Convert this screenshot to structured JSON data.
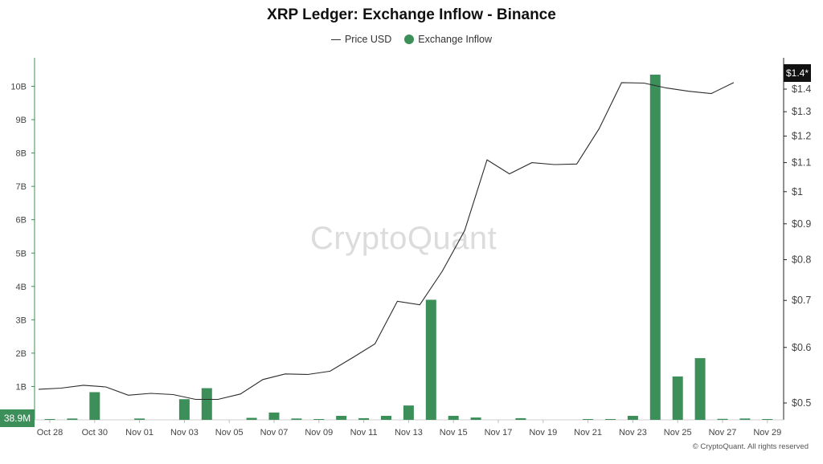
{
  "chart_data": {
    "type": "bar",
    "title": "XRP Ledger: Exchange Inflow - Binance",
    "legend": [
      {
        "label": "Price USD",
        "marker": "line",
        "color": "#333333"
      },
      {
        "label": "Exchange Inflow",
        "marker": "dot",
        "color": "#3d8f5a"
      }
    ],
    "left_axis": {
      "ticks": [
        {
          "value": 1,
          "label": "1B"
        },
        {
          "value": 2,
          "label": "2B"
        },
        {
          "value": 3,
          "label": "3B"
        },
        {
          "value": 4,
          "label": "4B"
        },
        {
          "value": 5,
          "label": "5B"
        },
        {
          "value": 6,
          "label": "6B"
        },
        {
          "value": 7,
          "label": "7B"
        },
        {
          "value": 8,
          "label": "8B"
        },
        {
          "value": 9,
          "label": "9B"
        },
        {
          "value": 10,
          "label": "10B"
        }
      ],
      "range": [
        0,
        10.35
      ],
      "current_label": "38.9M"
    },
    "right_axis": {
      "scale": "log",
      "ticks": [
        {
          "value": 0.5,
          "label": "$0.5"
        },
        {
          "value": 0.6,
          "label": "$0.6"
        },
        {
          "value": 0.7,
          "label": "$0.7"
        },
        {
          "value": 0.8,
          "label": "$0.8"
        },
        {
          "value": 0.9,
          "label": "$0.9"
        },
        {
          "value": 1.0,
          "label": "$1"
        },
        {
          "value": 1.1,
          "label": "$1.1"
        },
        {
          "value": 1.2,
          "label": "$1.2"
        },
        {
          "value": 1.3,
          "label": "$1.3"
        },
        {
          "value": 1.4,
          "label": "$1.4"
        }
      ],
      "range": [
        0.47,
        1.505
      ],
      "current_label": "$1.4*"
    },
    "x_ticks": [
      "Oct 28",
      "Oct 30",
      "Nov 01",
      "Nov 03",
      "Nov 05",
      "Nov 07",
      "Nov 09",
      "Nov 11",
      "Nov 13",
      "Nov 15",
      "Nov 17",
      "Nov 19",
      "Nov 21",
      "Nov 23",
      "Nov 25",
      "Nov 27",
      "Nov 29"
    ],
    "categories": [
      "Oct 28",
      "Oct 29",
      "Oct 30",
      "Oct 31",
      "Nov 01",
      "Nov 02",
      "Nov 03",
      "Nov 04",
      "Nov 05",
      "Nov 06",
      "Nov 07",
      "Nov 08",
      "Nov 09",
      "Nov 10",
      "Nov 11",
      "Nov 12",
      "Nov 13",
      "Nov 14",
      "Nov 15",
      "Nov 16",
      "Nov 17",
      "Nov 18",
      "Nov 19",
      "Nov 20",
      "Nov 21",
      "Nov 22",
      "Nov 23",
      "Nov 24",
      "Nov 25",
      "Nov 26",
      "Nov 27",
      "Nov 28",
      "Nov 29"
    ],
    "series": [
      {
        "name": "Exchange Inflow",
        "unit": "B",
        "values": [
          0.01,
          0.04,
          0.83,
          0.0,
          0.04,
          0.0,
          0.62,
          0.95,
          0.0,
          0.06,
          0.22,
          0.04,
          0.02,
          0.12,
          0.05,
          0.12,
          0.43,
          3.6,
          0.12,
          0.07,
          0.0,
          0.05,
          0.0,
          0.0,
          0.02,
          0.02,
          0.12,
          10.35,
          1.3,
          1.85,
          0.03,
          0.04,
          0.02
        ]
      },
      {
        "name": "Price USD",
        "unit": "USD",
        "values": [
          0.523,
          0.525,
          0.53,
          0.527,
          0.513,
          0.516,
          0.514,
          0.506,
          0.506,
          0.515,
          0.54,
          0.55,
          0.549,
          0.555,
          0.58,
          0.607,
          0.698,
          0.69,
          0.77,
          0.88,
          1.11,
          1.06,
          1.1,
          1.093,
          1.095,
          1.23,
          1.43,
          1.428,
          1.405,
          1.39,
          1.38,
          1.43,
          null
        ]
      }
    ],
    "colors": {
      "bar": "#3d8f5a",
      "line": "#2b2b2b",
      "badge_left": "#3d8f5a",
      "badge_right": "#111111"
    },
    "grid": false,
    "legend_position": "top-center"
  },
  "watermark": "CryptoQuant",
  "copyright": "© CryptoQuant. All rights reserved"
}
